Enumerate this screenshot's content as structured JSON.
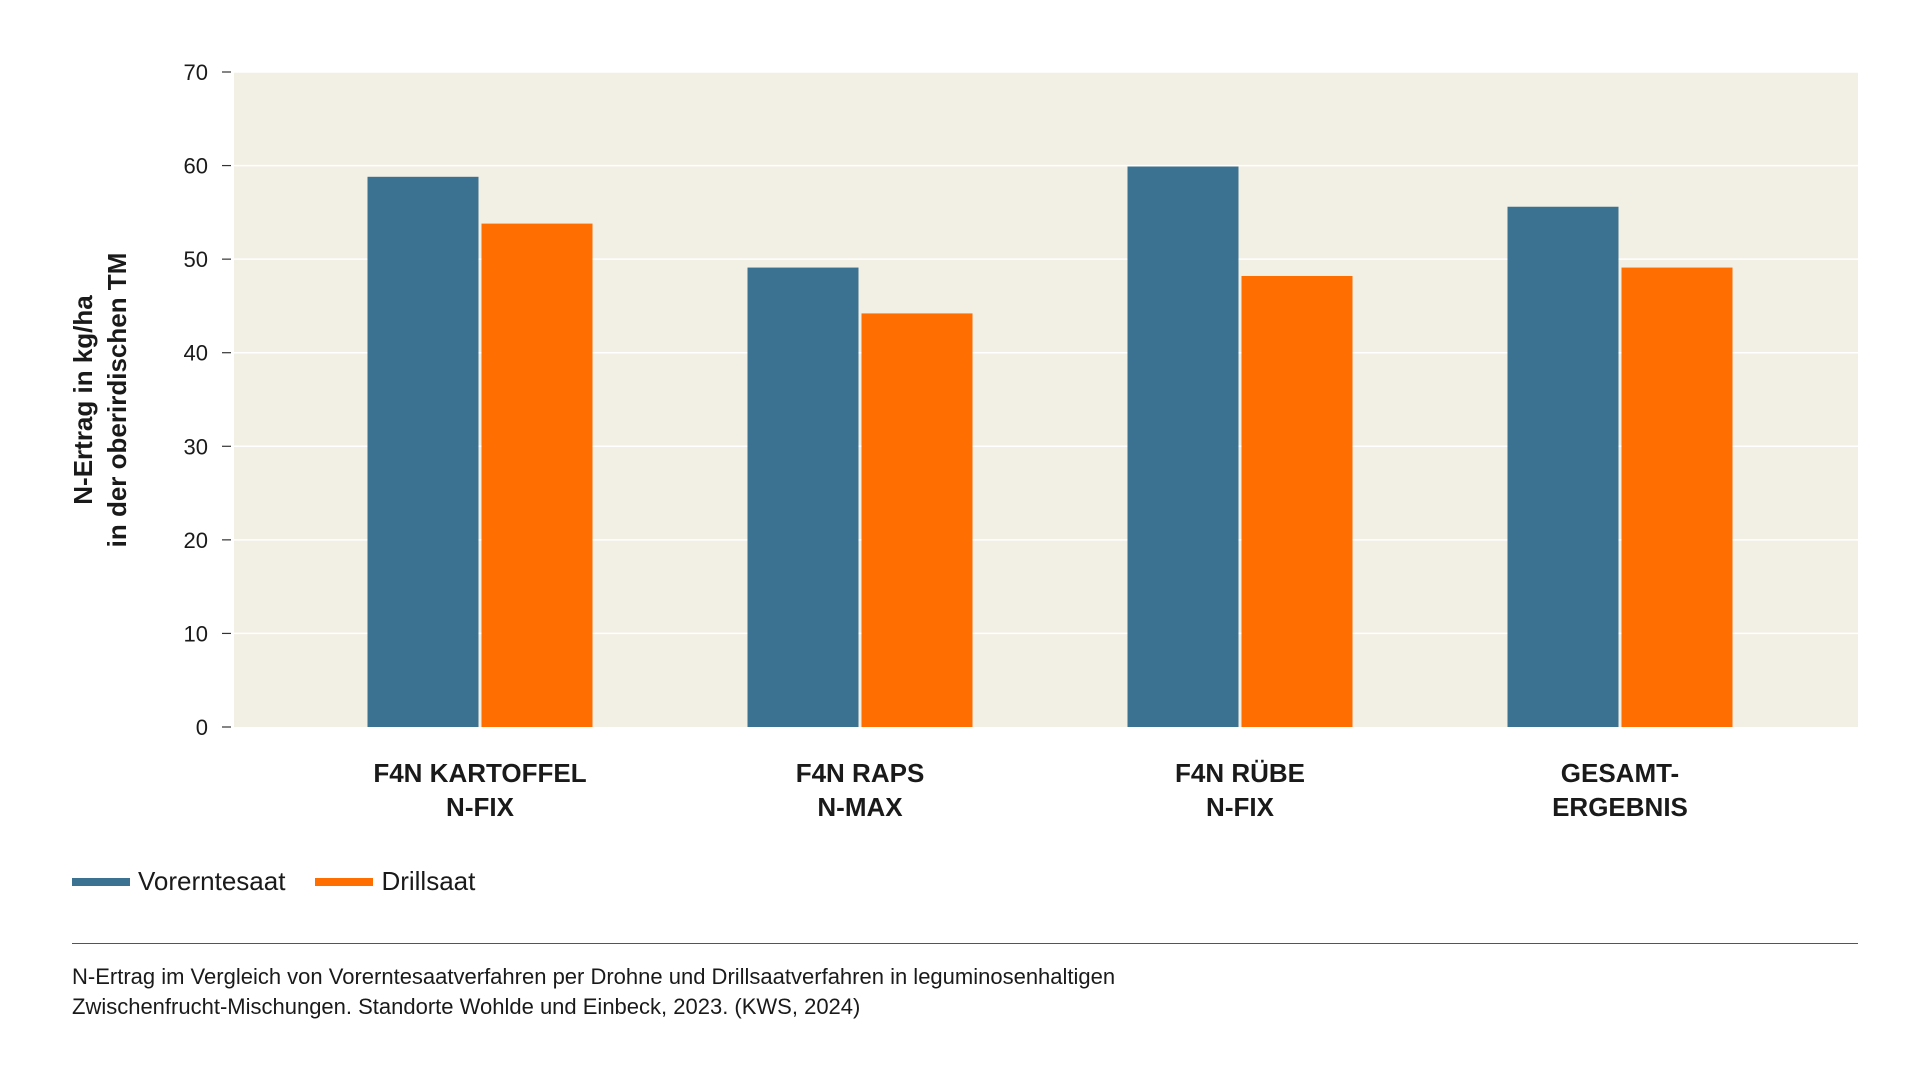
{
  "chart_data": {
    "type": "bar",
    "title": "",
    "ylabel_lines": [
      "N-Ertrag in kg/ha",
      "in der oberirdischen TM"
    ],
    "ylim": [
      0,
      70
    ],
    "yticks": [
      "0",
      "10",
      "20",
      "30",
      "40",
      "50",
      "60",
      "70"
    ],
    "grid": true,
    "categories": [
      [
        "F4N KARTOFFEL",
        "N-FIX"
      ],
      [
        "F4N RAPS",
        "N-MAX"
      ],
      [
        "F4N RÜBE",
        "N-FIX"
      ],
      [
        "GESAMT-",
        "ERGEBNIS"
      ]
    ],
    "series": [
      {
        "name": "Vorerntesaat",
        "color": "#3c7291",
        "values": [
          58.8,
          49.1,
          59.9,
          55.6
        ]
      },
      {
        "name": "Drillsaat",
        "color": "#ff6e00",
        "values": [
          53.8,
          44.2,
          48.2,
          49.1
        ]
      }
    ],
    "legend_position": "bottom-left",
    "plot_background": "#f2efe4"
  },
  "legend": {
    "items": [
      {
        "label": "Vorerntesaat",
        "color": "#3c7291"
      },
      {
        "label": "Drillsaat",
        "color": "#ff6e00"
      }
    ]
  },
  "caption": {
    "line1": "N-Ertrag im Vergleich von Vorerntesaatverfahren per Drohne und Drillsaatverfahren in leguminosenhaltigen",
    "line2": "Zwischenfrucht-Mischungen. Standorte Wohlde und Einbeck, 2023. (KWS, 2024)"
  }
}
